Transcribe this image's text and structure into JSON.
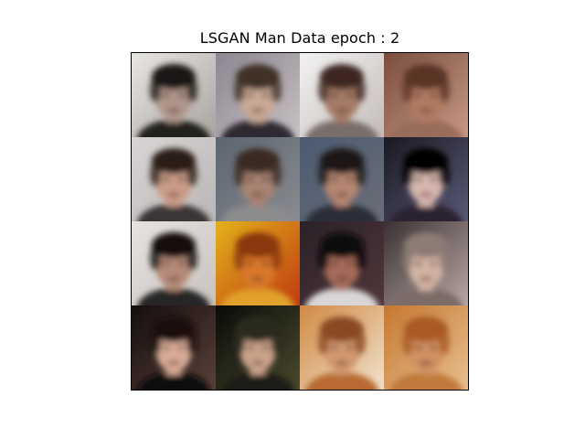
{
  "title": "LSGAN Man Data epoch : 2",
  "tiles": [
    {
      "bg": "#e8e6e3",
      "bg2": "#a9a3a0",
      "hair": "#1a1512",
      "skin": "#b0958a",
      "shirt": "#20201f"
    },
    {
      "bg": "#8b8690",
      "bg2": "#c8c1c4",
      "hair": "#3f3128",
      "skin": "#c9a894",
      "shirt": "#2f2c33"
    },
    {
      "bg": "#f3f2f2",
      "bg2": "#c3bcb9",
      "hair": "#3d2820",
      "skin": "#a67b66",
      "shirt": "#7a6e6b"
    },
    {
      "bg": "#7a4d3e",
      "bg2": "#c89a86",
      "hair": "#5a3426",
      "skin": "#b07a62",
      "shirt": "#9a6c5a"
    },
    {
      "bg": "#d8d5d4",
      "bg2": "#bab5b6",
      "hair": "#2a1e18",
      "skin": "#c99c87",
      "shirt": "#3a3634"
    },
    {
      "bg": "#5b6470",
      "bg2": "#8b8c90",
      "hair": "#3b2a22",
      "skin": "#a88372",
      "shirt": "#8c8b8e"
    },
    {
      "bg": "#4b5a70",
      "bg2": "#6b6e78",
      "hair": "#1d1816",
      "skin": "#b58671",
      "shirt": "#2a2e38"
    },
    {
      "bg": "#1a1820",
      "bg2": "#5a5a78",
      "hair": "#050405",
      "skin": "#d6b5ad",
      "shirt": "#2a2030"
    },
    {
      "bg": "#e6e3e1",
      "bg2": "#c9c2bf",
      "hair": "#120d0b",
      "skin": "#b58a78",
      "shirt": "#272726"
    },
    {
      "bg": "#e2b21a",
      "bg2": "#c03a12",
      "hair": "#8a3910",
      "skin": "#d9782c",
      "shirt": "#e0a22a"
    },
    {
      "bg": "#2a2128",
      "bg2": "#50373a",
      "hair": "#0b0709",
      "skin": "#a56b5a",
      "shirt": "#d9d6d8"
    },
    {
      "bg": "#3a3032",
      "bg2": "#b9a8a4",
      "hair": "#8c7b75",
      "skin": "#d2b2a2",
      "shirt": "#7c6c68"
    },
    {
      "bg": "#140e0e",
      "bg2": "#5a4038",
      "hair": "#1a0f0d",
      "skin": "#d8aa96",
      "shirt": "#0c0808"
    },
    {
      "bg": "#0a0a08",
      "bg2": "#4a4a2e",
      "hair": "#2b2a1e",
      "skin": "#caa28a",
      "shirt": "#1a1a18"
    },
    {
      "bg": "#d18a44",
      "bg2": "#f0e2cc",
      "hair": "#8a4a22",
      "skin": "#d29870",
      "shirt": "#b86a30"
    },
    {
      "bg": "#c57830",
      "bg2": "#e8c090",
      "hair": "#a85a22",
      "skin": "#d09060",
      "shirt": "#c07a3a"
    }
  ]
}
